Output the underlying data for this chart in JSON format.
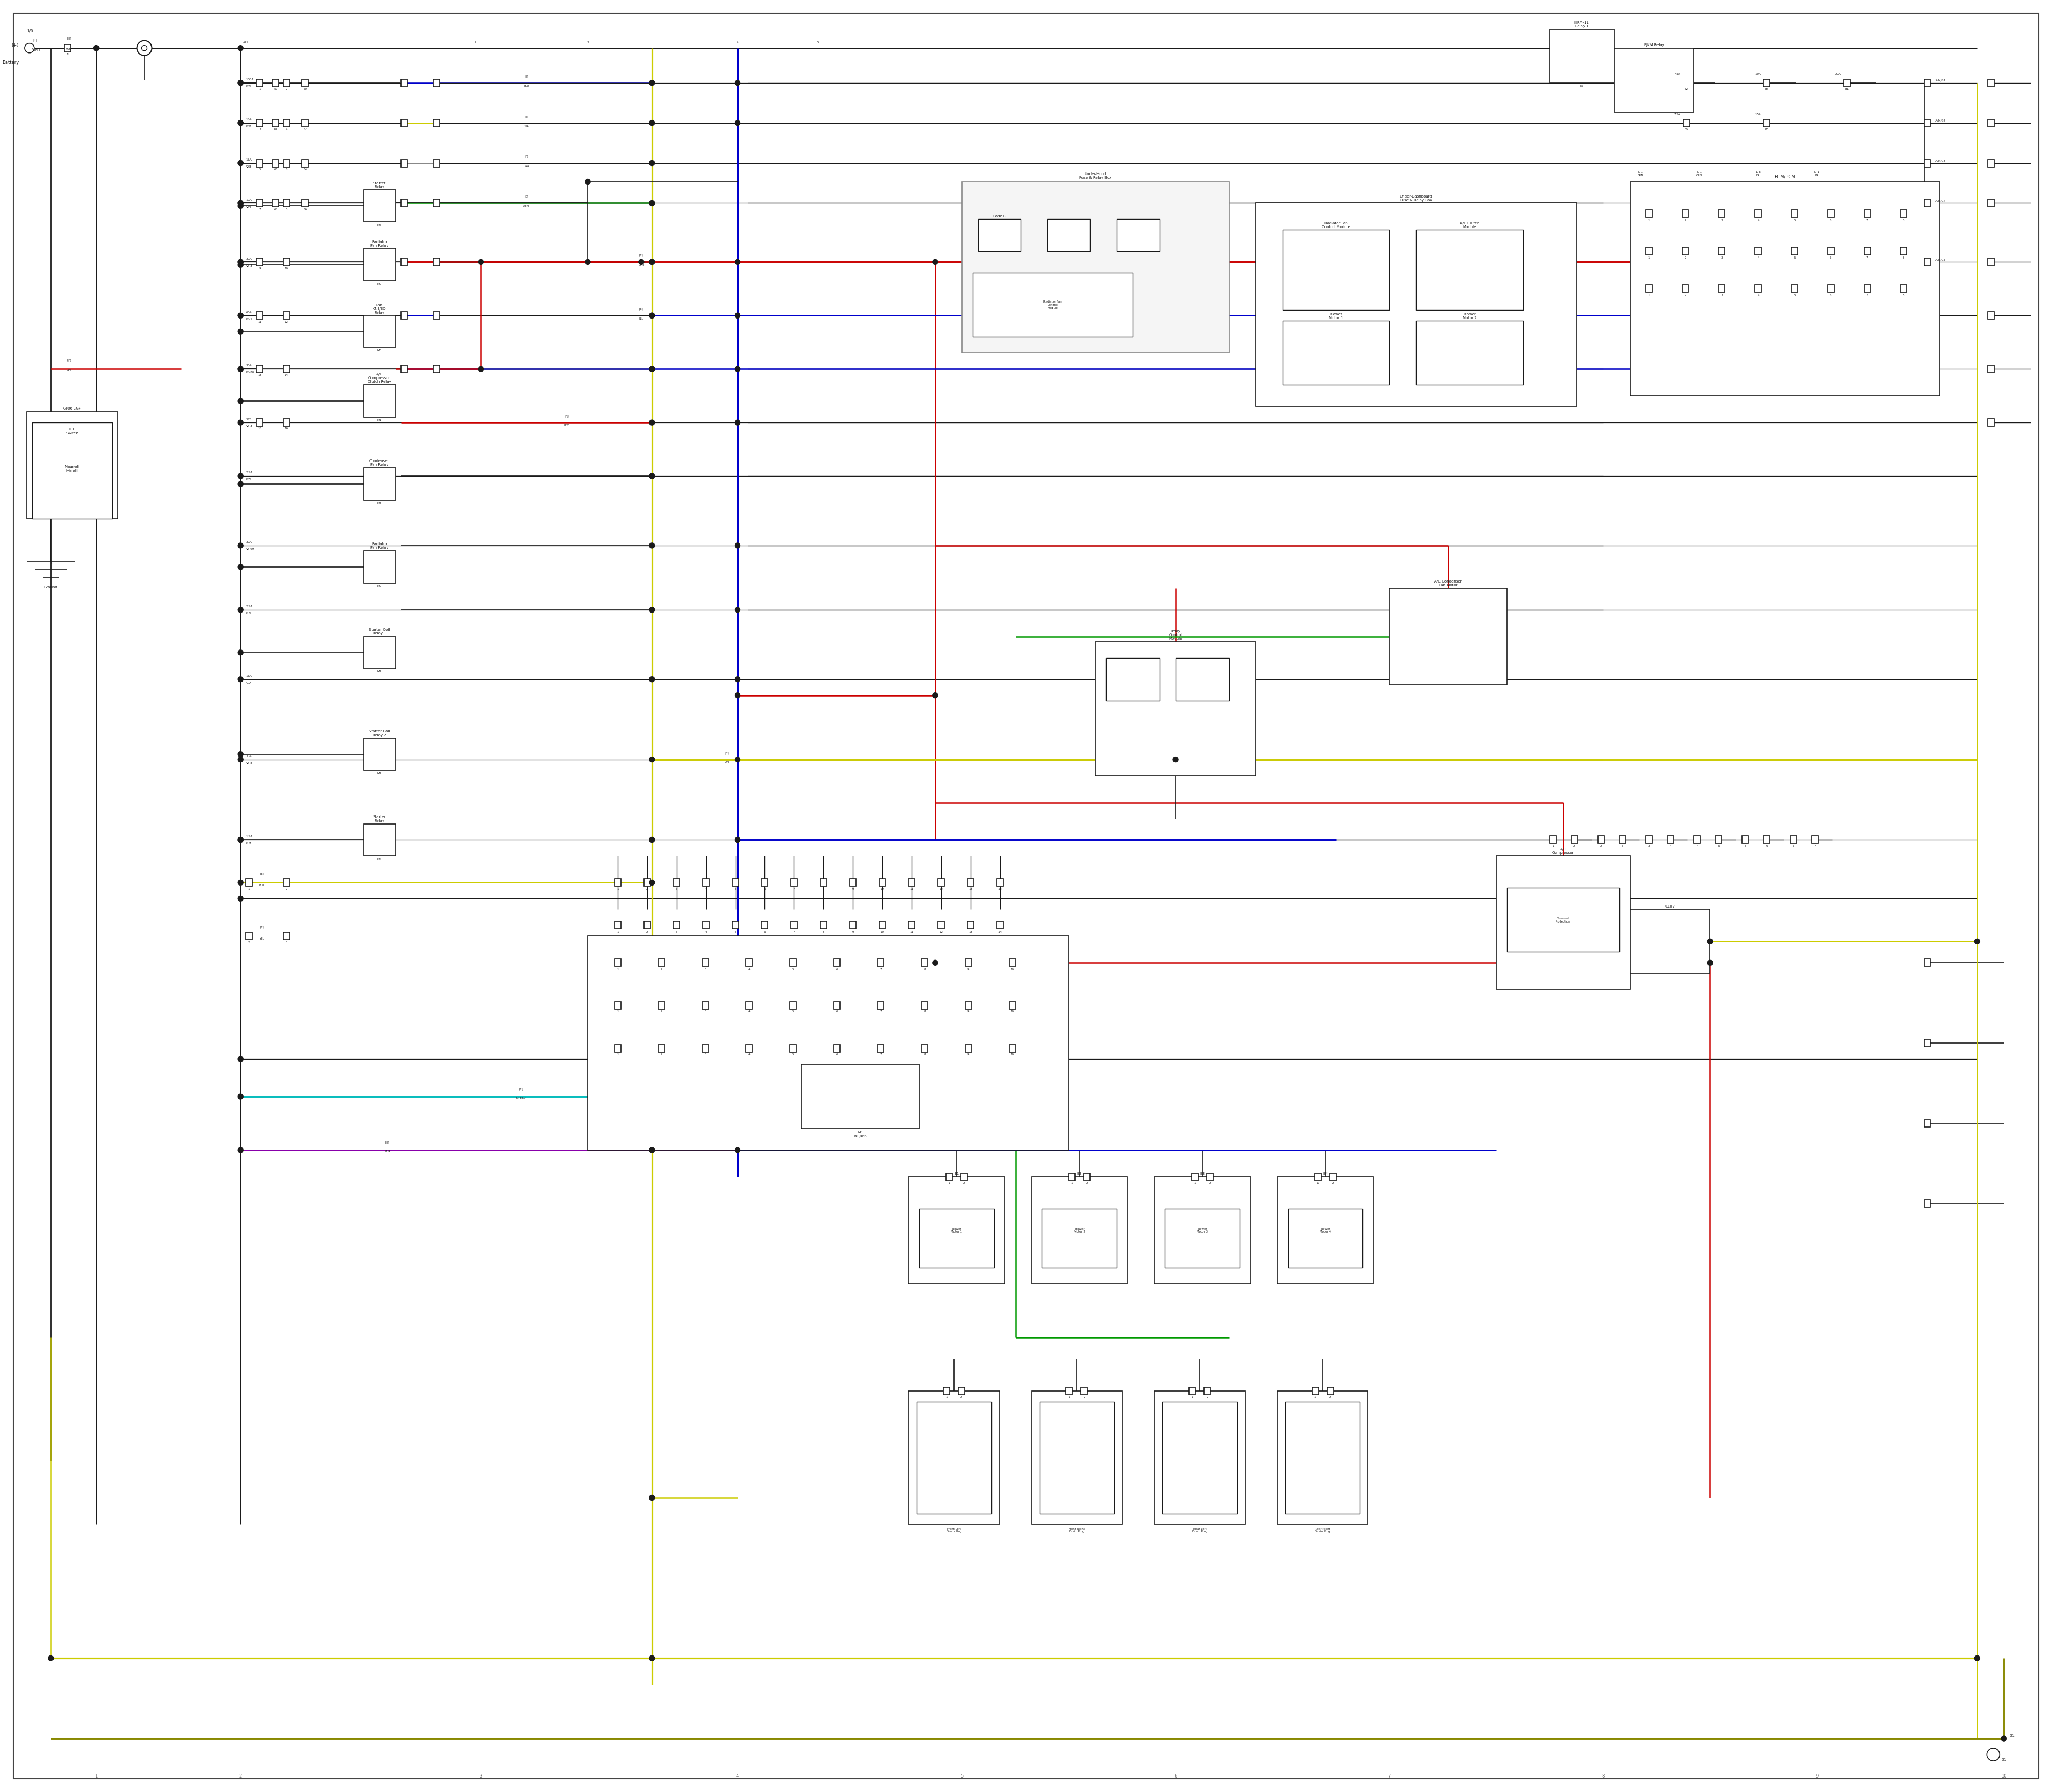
{
  "background_color": "#ffffff",
  "wire_colors": {
    "black": "#1a1a1a",
    "red": "#cc0000",
    "blue": "#0000cc",
    "yellow": "#cccc00",
    "green": "#009900",
    "cyan": "#00bbbb",
    "purple": "#8800aa",
    "gray": "#888888",
    "dark_olive": "#888800",
    "orange": "#ff8800",
    "dark_gray": "#444444"
  },
  "lw": {
    "main": 1.2,
    "thick": 2.0,
    "colored": 1.8,
    "thin": 0.7
  },
  "fs": {
    "tiny": 5,
    "small": 6,
    "medium": 7
  }
}
